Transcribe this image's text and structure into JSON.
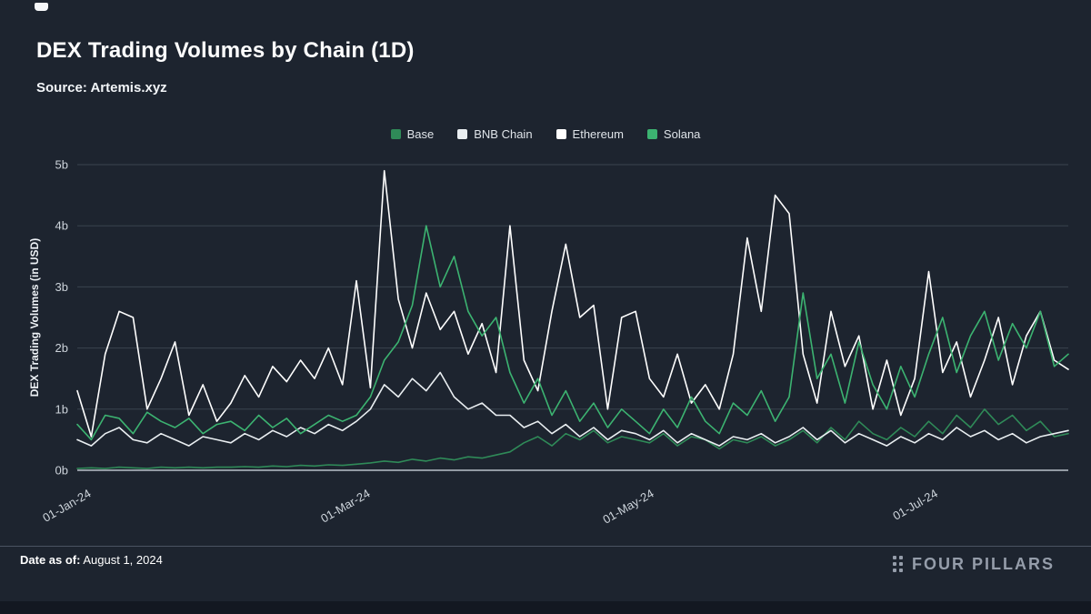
{
  "page": {
    "title": "DEX Trading Volumes by Chain (1D)",
    "source": "Source: Artemis.xyz"
  },
  "footer": {
    "date_label": "Date as of:",
    "date_value": " August 1, 2024",
    "brand": "FOUR PILLARS"
  },
  "colors": {
    "background": "#1d242f",
    "grid": "#3a434f",
    "axis": "#b9c1ca",
    "tick_text": "#cdd4db"
  },
  "chart_data": {
    "type": "line",
    "title": "DEX Trading Volumes by Chain (1D)",
    "subtitle": "Source: Artemis.xyz",
    "xlabel": "",
    "ylabel": "DEX Trading Volumes (in USD)",
    "ylim": [
      0,
      5
    ],
    "grid": true,
    "legend_position": "top-center",
    "x_unit": "days since 01-Jan-24",
    "x_range_days": [
      0,
      213
    ],
    "y_ticks": [
      {
        "v": 0,
        "label": "0b"
      },
      {
        "v": 1,
        "label": "1b"
      },
      {
        "v": 2,
        "label": "2b"
      },
      {
        "v": 3,
        "label": "3b"
      },
      {
        "v": 4,
        "label": "4b"
      },
      {
        "v": 5,
        "label": "5b"
      }
    ],
    "x_ticks": [
      {
        "day": 0,
        "label": "01-Jan-24"
      },
      {
        "day": 60,
        "label": "01-Mar-24"
      },
      {
        "day": 121,
        "label": "01-May-24"
      },
      {
        "day": 182,
        "label": "01-Jul-24"
      }
    ],
    "x_days": [
      0,
      3,
      6,
      9,
      12,
      15,
      18,
      21,
      24,
      27,
      30,
      33,
      36,
      39,
      42,
      45,
      48,
      51,
      54,
      57,
      60,
      63,
      66,
      69,
      72,
      75,
      78,
      81,
      84,
      87,
      90,
      93,
      96,
      99,
      102,
      105,
      108,
      111,
      114,
      117,
      120,
      123,
      126,
      129,
      132,
      135,
      138,
      141,
      144,
      147,
      150,
      153,
      156,
      159,
      162,
      165,
      168,
      171,
      174,
      177,
      180,
      183,
      186,
      189,
      192,
      195,
      198,
      201,
      204,
      207,
      210,
      213
    ],
    "series": [
      {
        "name": "Base",
        "color": "#2f8a58",
        "values": [
          0.03,
          0.04,
          0.03,
          0.05,
          0.04,
          0.03,
          0.05,
          0.04,
          0.05,
          0.04,
          0.05,
          0.05,
          0.06,
          0.05,
          0.07,
          0.06,
          0.08,
          0.07,
          0.09,
          0.08,
          0.1,
          0.12,
          0.15,
          0.13,
          0.18,
          0.15,
          0.2,
          0.17,
          0.22,
          0.2,
          0.25,
          0.3,
          0.45,
          0.55,
          0.4,
          0.6,
          0.5,
          0.65,
          0.45,
          0.55,
          0.5,
          0.45,
          0.6,
          0.4,
          0.55,
          0.5,
          0.35,
          0.5,
          0.45,
          0.55,
          0.4,
          0.5,
          0.65,
          0.45,
          0.7,
          0.5,
          0.8,
          0.6,
          0.5,
          0.7,
          0.55,
          0.8,
          0.6,
          0.9,
          0.7,
          1.0,
          0.75,
          0.9,
          0.65,
          0.8,
          0.55,
          0.6
        ]
      },
      {
        "name": "BNB Chain",
        "color": "#e9eef1",
        "values": [
          0.5,
          0.4,
          0.6,
          0.7,
          0.5,
          0.45,
          0.6,
          0.5,
          0.4,
          0.55,
          0.5,
          0.45,
          0.6,
          0.5,
          0.65,
          0.55,
          0.7,
          0.6,
          0.75,
          0.65,
          0.8,
          1.0,
          1.4,
          1.2,
          1.5,
          1.3,
          1.6,
          1.2,
          1.0,
          1.1,
          0.9,
          0.9,
          0.7,
          0.8,
          0.6,
          0.75,
          0.55,
          0.7,
          0.5,
          0.65,
          0.6,
          0.5,
          0.65,
          0.45,
          0.6,
          0.5,
          0.4,
          0.55,
          0.5,
          0.6,
          0.45,
          0.55,
          0.7,
          0.5,
          0.65,
          0.45,
          0.6,
          0.5,
          0.4,
          0.55,
          0.45,
          0.6,
          0.5,
          0.7,
          0.55,
          0.65,
          0.5,
          0.6,
          0.45,
          0.55,
          0.6,
          0.65
        ]
      },
      {
        "name": "Ethereum",
        "color": "#ffffff",
        "values": [
          1.3,
          0.55,
          1.9,
          2.6,
          2.5,
          1.0,
          1.5,
          2.1,
          0.9,
          1.4,
          0.8,
          1.1,
          1.55,
          1.2,
          1.7,
          1.45,
          1.8,
          1.5,
          2.0,
          1.4,
          3.1,
          1.35,
          4.9,
          2.8,
          2.0,
          2.9,
          2.3,
          2.6,
          1.9,
          2.4,
          1.6,
          4.0,
          1.8,
          1.3,
          2.6,
          3.7,
          2.5,
          2.7,
          1.0,
          2.5,
          2.6,
          1.5,
          1.2,
          1.9,
          1.1,
          1.4,
          1.0,
          1.9,
          3.8,
          2.6,
          4.5,
          4.2,
          1.9,
          1.1,
          2.6,
          1.7,
          2.2,
          1.0,
          1.8,
          0.9,
          1.5,
          3.25,
          1.6,
          2.1,
          1.2,
          1.8,
          2.5,
          1.4,
          2.2,
          2.6,
          1.8,
          1.65
        ]
      },
      {
        "name": "Solana",
        "color": "#3cb371",
        "values": [
          0.75,
          0.5,
          0.9,
          0.85,
          0.6,
          0.95,
          0.8,
          0.7,
          0.85,
          0.6,
          0.75,
          0.8,
          0.65,
          0.9,
          0.7,
          0.85,
          0.6,
          0.75,
          0.9,
          0.8,
          0.9,
          1.2,
          1.8,
          2.1,
          2.7,
          4.0,
          3.0,
          3.5,
          2.6,
          2.2,
          2.5,
          1.6,
          1.1,
          1.5,
          0.9,
          1.3,
          0.8,
          1.1,
          0.7,
          1.0,
          0.8,
          0.6,
          1.0,
          0.7,
          1.2,
          0.8,
          0.6,
          1.1,
          0.9,
          1.3,
          0.8,
          1.2,
          2.9,
          1.5,
          1.9,
          1.1,
          2.1,
          1.4,
          1.0,
          1.7,
          1.2,
          1.9,
          2.5,
          1.6,
          2.2,
          2.6,
          1.8,
          2.4,
          2.0,
          2.6,
          1.7,
          1.9
        ]
      }
    ]
  }
}
